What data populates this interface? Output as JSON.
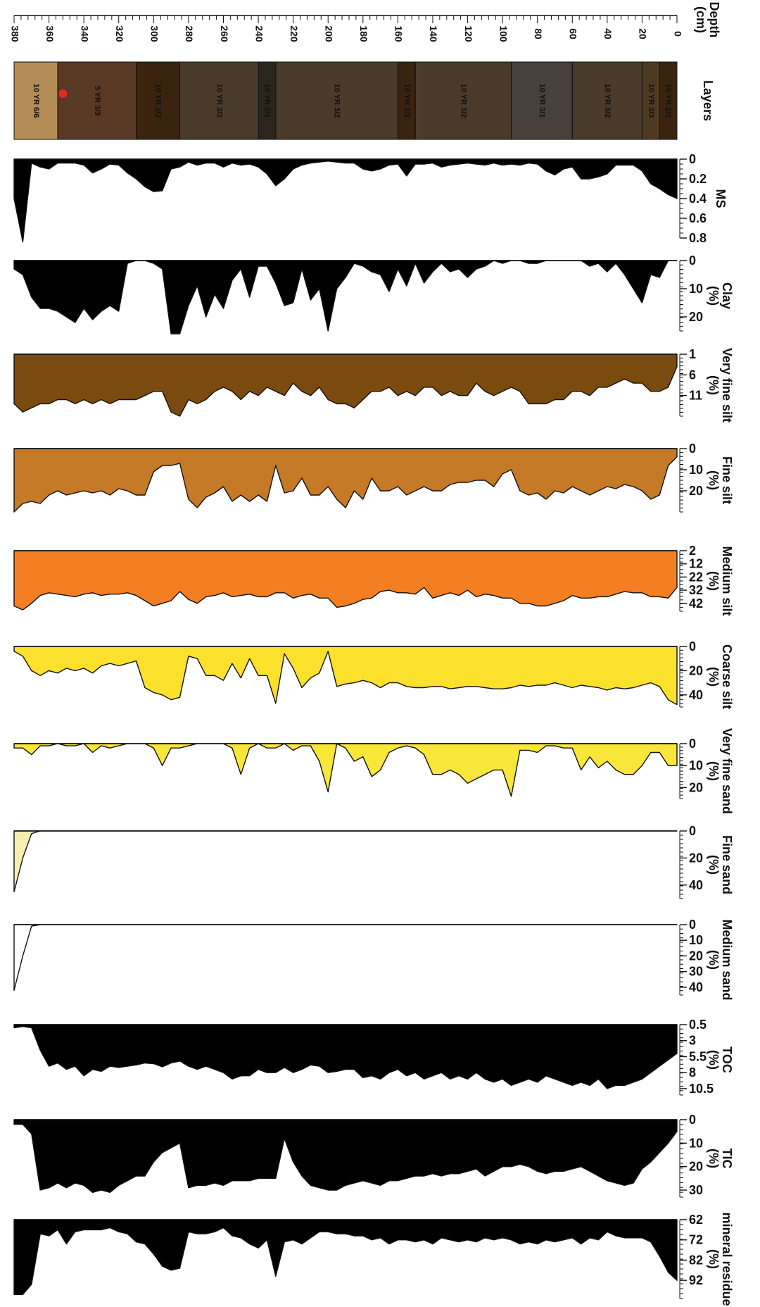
{
  "chart_data": {
    "type": "area",
    "orientation": "depth profile, rotated 90 degrees (depth runs right to left)",
    "depth": {
      "label": "Depth\n(cm)",
      "lim": [
        0,
        380
      ],
      "ticks": [
        0,
        20,
        40,
        60,
        80,
        100,
        120,
        140,
        160,
        180,
        200,
        220,
        240,
        260,
        280,
        300,
        320,
        340,
        360,
        380
      ]
    },
    "layers": {
      "label": "Layers",
      "items": [
        {
          "top": 0,
          "bottom": 10,
          "label": "10 YR 2/2",
          "color": "#3a2410"
        },
        {
          "top": 10,
          "bottom": 20,
          "label": "10 YR 3/3",
          "color": "#4f3a22"
        },
        {
          "top": 20,
          "bottom": 60,
          "label": "10 YR 3/2",
          "color": "#4a3b2b"
        },
        {
          "top": 60,
          "bottom": 95,
          "label": "10 YR 3/1",
          "color": "#48403a"
        },
        {
          "top": 95,
          "bottom": 150,
          "label": "10 YR 3/2",
          "color": "#4a3b2b"
        },
        {
          "top": 150,
          "bottom": 160,
          "label": "10 YR 2/2",
          "color": "#3a2410"
        },
        {
          "top": 160,
          "bottom": 230,
          "label": "10 YR 3/2",
          "color": "#4a3b2b"
        },
        {
          "top": 230,
          "bottom": 240,
          "label": "10 YR 2/1",
          "color": "#2b261c"
        },
        {
          "top": 240,
          "bottom": 285,
          "label": "10 YR 3/2",
          "color": "#4a3b2b"
        },
        {
          "top": 285,
          "bottom": 310,
          "label": "10 YR 2/2",
          "color": "#3a2410"
        },
        {
          "top": 310,
          "bottom": 355,
          "label": "5 YR 3/3",
          "color": "#5a3826"
        },
        {
          "top": 355,
          "bottom": 380,
          "label": "10 YR 6/6",
          "color": "#b48c55"
        }
      ],
      "marker": {
        "depth": 352,
        "color": "#e8281e"
      }
    },
    "depths": [
      0,
      5,
      10,
      15,
      20,
      25,
      30,
      35,
      40,
      45,
      50,
      55,
      60,
      65,
      70,
      75,
      80,
      85,
      90,
      95,
      100,
      105,
      110,
      115,
      120,
      125,
      130,
      135,
      140,
      145,
      150,
      155,
      160,
      165,
      170,
      175,
      180,
      185,
      190,
      195,
      200,
      205,
      210,
      215,
      220,
      225,
      230,
      235,
      240,
      245,
      250,
      255,
      260,
      265,
      270,
      275,
      280,
      285,
      290,
      295,
      300,
      305,
      310,
      315,
      320,
      325,
      330,
      335,
      340,
      345,
      350,
      355,
      360,
      365,
      370,
      375,
      380
    ],
    "series": [
      {
        "name": "MS",
        "axis_label": "MS",
        "color": "#000000",
        "lim": [
          0,
          0.8
        ],
        "ticks": [
          "0",
          "0.2",
          "0.4",
          "0.6",
          "0.8"
        ],
        "values": [
          0.4,
          0.36,
          0.3,
          0.25,
          0.12,
          0.06,
          0.06,
          0.06,
          0.15,
          0.18,
          0.2,
          0.2,
          0.08,
          0.1,
          0.16,
          0.12,
          0.05,
          0.04,
          0.06,
          0.05,
          0.06,
          0.04,
          0.06,
          0.05,
          0.04,
          0.05,
          0.06,
          0.08,
          0.04,
          0.05,
          0.05,
          0.17,
          0.05,
          0.06,
          0.1,
          0.12,
          0.1,
          0.04,
          0.04,
          0.03,
          0.02,
          0.03,
          0.04,
          0.06,
          0.1,
          0.2,
          0.27,
          0.15,
          0.08,
          0.05,
          0.06,
          0.04,
          0.08,
          0.04,
          0.04,
          0.06,
          0.03,
          0.08,
          0.1,
          0.32,
          0.33,
          0.28,
          0.2,
          0.14,
          0.06,
          0.05,
          0.1,
          0.14,
          0.06,
          0.04,
          0.04,
          0.04,
          0.1,
          0.08,
          0.04,
          0.84,
          0.4
        ]
      },
      {
        "name": "Clay (%)",
        "axis_label": "Clay\n(%)",
        "color": "#000000",
        "lim": [
          0,
          25
        ],
        "ticks": [
          "0",
          "10",
          "20"
        ],
        "values": [
          0,
          0,
          6,
          5,
          15,
          10,
          5,
          1,
          4,
          1,
          2,
          0,
          0,
          0,
          0,
          0,
          1,
          1,
          0,
          0,
          1,
          0,
          2,
          3,
          6,
          3,
          4,
          1,
          4,
          8,
          1,
          9,
          3,
          11,
          5,
          4,
          2,
          1,
          6,
          10,
          25,
          10,
          14,
          3,
          15,
          16,
          8,
          2,
          2,
          13,
          3,
          7,
          17,
          12,
          20,
          9,
          16,
          26,
          26,
          3,
          1,
          0,
          0,
          1,
          18,
          16,
          18,
          21,
          17,
          22,
          20,
          18,
          17,
          17,
          13,
          5,
          3
        ]
      },
      {
        "name": "Very fine silt (%)",
        "axis_label": "Very fine silt\n(%)",
        "color": "#7a4a0e",
        "lim": [
          1,
          16
        ],
        "ticks": [
          "1",
          "6",
          "11"
        ],
        "values": [
          4,
          9,
          10,
          10,
          8,
          8,
          7,
          8,
          9,
          9,
          11,
          10,
          10,
          12,
          12,
          13,
          13,
          13,
          10,
          9,
          10,
          11,
          10,
          8,
          11,
          11,
          10,
          11,
          9,
          9,
          11,
          10,
          11,
          9,
          10,
          10,
          12,
          14,
          13,
          13,
          12,
          9,
          11,
          10,
          8,
          11,
          10,
          9,
          11,
          10,
          12,
          10,
          9,
          10,
          12,
          13,
          12,
          16,
          15,
          10,
          10,
          11,
          12,
          12,
          12,
          13,
          12,
          13,
          12,
          13,
          12,
          12,
          13,
          13,
          14,
          15,
          13
        ]
      },
      {
        "name": "Fine silt (%)",
        "axis_label": "Fine silt\n(%)",
        "color": "#c47a26",
        "lim": [
          0,
          30
        ],
        "ticks": [
          "0",
          "10",
          "20"
        ],
        "values": [
          4,
          8,
          22,
          24,
          20,
          18,
          17,
          19,
          18,
          20,
          22,
          20,
          18,
          21,
          20,
          24,
          21,
          22,
          20,
          10,
          12,
          18,
          15,
          15,
          16,
          16,
          17,
          20,
          20,
          18,
          20,
          22,
          18,
          20,
          20,
          14,
          24,
          20,
          28,
          24,
          18,
          22,
          22,
          14,
          20,
          21,
          8,
          25,
          22,
          25,
          22,
          25,
          18,
          21,
          23,
          28,
          24,
          7,
          8,
          8,
          11,
          22,
          22,
          20,
          19,
          22,
          20,
          21,
          20,
          21,
          22,
          20,
          22,
          26,
          25,
          26,
          30
        ]
      },
      {
        "name": "Medium silt (%)",
        "axis_label": "Medium silt\n(%)",
        "color": "#f47e22",
        "lim": [
          2,
          48
        ],
        "ticks": [
          "2",
          "12",
          "22",
          "32",
          "42"
        ],
        "values": [
          30,
          38,
          37,
          37,
          34,
          34,
          33,
          35,
          37,
          37,
          38,
          38,
          36,
          40,
          42,
          44,
          44,
          42,
          42,
          38,
          38,
          36,
          35,
          37,
          32,
          36,
          34,
          36,
          38,
          30,
          35,
          34,
          34,
          32,
          33,
          38,
          39,
          42,
          44,
          45,
          38,
          38,
          35,
          36,
          38,
          34,
          34,
          37,
          37,
          35,
          36,
          37,
          34,
          36,
          37,
          42,
          39,
          33,
          40,
          42,
          44,
          40,
          36,
          34,
          35,
          35,
          36,
          34,
          35,
          37,
          36,
          35,
          34,
          36,
          42,
          47,
          44
        ]
      },
      {
        "name": "Coarse silt (%)",
        "axis_label": "Coarse silt\n(%)",
        "color": "#fbe02c",
        "lim": [
          0,
          50
        ],
        "ticks": [
          "0",
          "20",
          "40"
        ],
        "values": [
          48,
          44,
          33,
          30,
          32,
          34,
          35,
          34,
          36,
          34,
          33,
          32,
          34,
          32,
          30,
          32,
          32,
          33,
          32,
          34,
          35,
          35,
          34,
          33,
          33,
          34,
          35,
          33,
          33,
          34,
          34,
          33,
          30,
          30,
          34,
          30,
          28,
          30,
          31,
          33,
          4,
          22,
          26,
          34,
          18,
          6,
          47,
          24,
          24,
          10,
          26,
          14,
          28,
          24,
          24,
          10,
          8,
          42,
          44,
          40,
          38,
          34,
          12,
          14,
          16,
          14,
          16,
          22,
          18,
          20,
          18,
          22,
          20,
          24,
          20,
          8,
          4
        ]
      },
      {
        "name": "Very fine sand (%)",
        "axis_label": "Very fine sand\n(%)",
        "color": "#f8e73a",
        "lim": [
          0,
          25
        ],
        "ticks": [
          "0",
          "10",
          "20"
        ],
        "values": [
          10,
          10,
          4,
          4,
          10,
          14,
          14,
          12,
          8,
          11,
          6,
          12,
          2,
          2,
          1,
          1,
          4,
          3,
          3,
          24,
          12,
          12,
          14,
          16,
          18,
          14,
          12,
          14,
          14,
          5,
          2,
          1,
          2,
          4,
          12,
          15,
          6,
          8,
          2,
          0,
          22,
          8,
          1,
          1,
          3,
          0,
          2,
          2,
          0,
          2,
          14,
          2,
          0,
          0,
          0,
          0,
          1,
          2,
          2,
          10,
          2,
          0,
          0,
          0,
          1,
          2,
          1,
          4,
          0,
          1,
          1,
          0,
          1,
          1,
          5,
          2,
          2
        ]
      },
      {
        "name": "Fine sand (%)",
        "axis_label": "Fine sand\n(%)",
        "color": "#f6eeb0",
        "lim": [
          0,
          50
        ],
        "ticks": [
          "0",
          "20",
          "40"
        ],
        "values": [
          0,
          0,
          0,
          0,
          0,
          0,
          0,
          0,
          0,
          0,
          0,
          0,
          0,
          0,
          0,
          0,
          0,
          0,
          0,
          0,
          0,
          0,
          0,
          0,
          0,
          0,
          0,
          0,
          0,
          0,
          0,
          0,
          0,
          0,
          0,
          0,
          0,
          0,
          0,
          0,
          0,
          0,
          0,
          0,
          0,
          0,
          0,
          0,
          0,
          0,
          0,
          0,
          0,
          0,
          0,
          0,
          0,
          0,
          0,
          0,
          0,
          0,
          0,
          0,
          0,
          0,
          0,
          0,
          0,
          0,
          0,
          0,
          0,
          0,
          2,
          20,
          45
        ]
      },
      {
        "name": "Medium sand (%)",
        "axis_label": "Medium sand\n(%)",
        "color": "#ffffff",
        "lim": [
          0,
          45
        ],
        "ticks": [
          "0",
          "10",
          "20",
          "30",
          "40"
        ],
        "values": [
          0,
          0,
          0,
          0,
          0,
          0,
          0,
          0,
          0,
          0,
          0,
          0,
          0,
          0,
          0,
          0,
          0,
          0,
          0,
          0,
          0,
          0,
          0,
          0,
          0,
          0,
          0,
          0,
          0,
          0,
          0,
          0,
          0,
          0,
          0,
          0,
          0,
          0,
          0,
          0,
          0,
          0,
          0,
          0,
          0,
          0,
          0,
          0,
          0,
          0,
          0,
          0,
          0,
          0,
          0,
          0,
          0,
          0,
          0,
          0,
          0,
          0,
          0,
          0,
          0,
          0,
          0,
          0,
          0,
          0,
          0,
          0,
          0,
          0,
          1,
          20,
          42
        ]
      },
      {
        "name": "TOC (%)",
        "axis_label": "TOC\n(%)",
        "color": "#000000",
        "lim": [
          0.5,
          11.5
        ],
        "ticks": [
          "0.5",
          "3",
          "5.5",
          "8",
          "10.5"
        ],
        "values": [
          5,
          6,
          7,
          8,
          9,
          9.5,
          10,
          10,
          10.5,
          9,
          10,
          9.5,
          10,
          9.5,
          9,
          8.5,
          9.5,
          9,
          9.5,
          10,
          9,
          9.5,
          9,
          8,
          9,
          8.5,
          9,
          8,
          8.5,
          9,
          8,
          8.5,
          7.5,
          8,
          9,
          8.5,
          8.8,
          7.5,
          7.5,
          7.8,
          8,
          7,
          6.8,
          7.5,
          8,
          7.2,
          8,
          8,
          7.5,
          8.5,
          8.5,
          9,
          8,
          7.5,
          7,
          7.5,
          7,
          6.2,
          6.5,
          7.1,
          6.6,
          6.5,
          6.8,
          7,
          7.2,
          7,
          7.8,
          7.5,
          8.5,
          7,
          7.5,
          6.5,
          7,
          4.5,
          1,
          0.8,
          1
        ]
      },
      {
        "name": "TIC (%)",
        "axis_label": "TIC\n(%)",
        "color": "#000000",
        "lim": [
          0,
          33
        ],
        "ticks": [
          "0",
          "10",
          "20",
          "30"
        ],
        "values": [
          5,
          10,
          14,
          18,
          21,
          27,
          28,
          27,
          26,
          24,
          22,
          20,
          21,
          22,
          22,
          23,
          22,
          20,
          19,
          20,
          20,
          22,
          24,
          21,
          22,
          23,
          23,
          24,
          23,
          24,
          24,
          25,
          26,
          26,
          28,
          27,
          26,
          27,
          28,
          30,
          30,
          29,
          28,
          24,
          18,
          8,
          25,
          25,
          25,
          26,
          26,
          26,
          28,
          27,
          28,
          28,
          29,
          10,
          12,
          14,
          18,
          24,
          24,
          26,
          28,
          31,
          30,
          31,
          28,
          27,
          29,
          27,
          29,
          30,
          6,
          2,
          2
        ]
      },
      {
        "name": "mineral residue (%)",
        "axis_label": "mineral residue\n(%)",
        "color": "#000000",
        "lim": [
          62,
          101
        ],
        "ticks": [
          "62",
          "72",
          "82",
          "92"
        ],
        "values": [
          92,
          88,
          80,
          73,
          71,
          71,
          71,
          70,
          68,
          72,
          71,
          74,
          71,
          72,
          73,
          72,
          74,
          73,
          74,
          72,
          71,
          72,
          71,
          73,
          72,
          73,
          72,
          71,
          74,
          72,
          73,
          72,
          72,
          74,
          71,
          72,
          70,
          70,
          69,
          69,
          68,
          68,
          71,
          74,
          72,
          73,
          90,
          72,
          76,
          74,
          71,
          70,
          66,
          68,
          69,
          69,
          68,
          86,
          87,
          85,
          79,
          74,
          73,
          69,
          68,
          66,
          67,
          67,
          67,
          68,
          74,
          67,
          70,
          69,
          94,
          99,
          99
        ]
      }
    ]
  }
}
